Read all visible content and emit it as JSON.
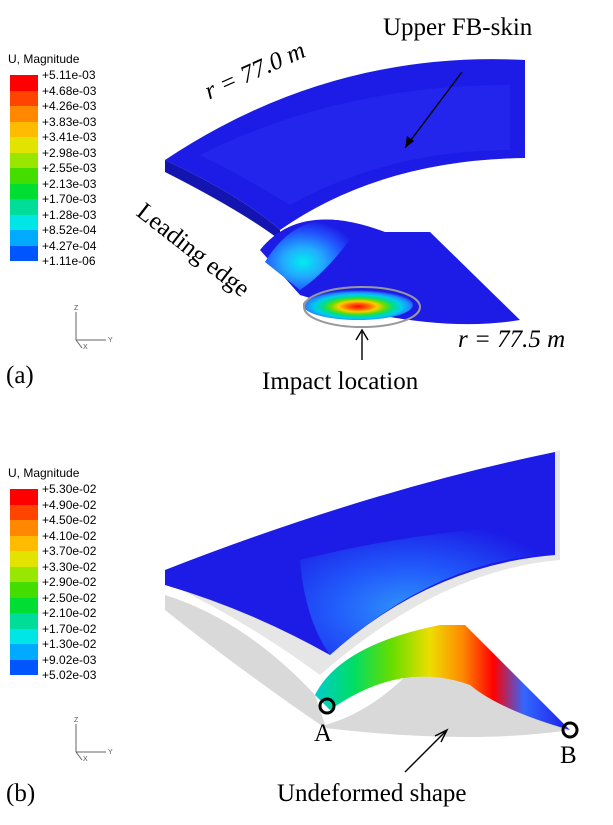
{
  "panel_a": {
    "panel_label": "(a)",
    "legend": {
      "title": "U, Magnitude",
      "values": [
        "+5.11e-03",
        "+4.68e-03",
        "+4.26e-03",
        "+3.83e-03",
        "+3.41e-03",
        "+2.98e-03",
        "+2.55e-03",
        "+2.13e-03",
        "+1.70e-03",
        "+1.28e-03",
        "+8.52e-04",
        "+4.27e-04",
        "+1.11e-06"
      ]
    },
    "triad": {
      "z": "Z",
      "y": "Y",
      "x": "X"
    },
    "annotations": {
      "upper_skin": "Upper FB-skin",
      "radius_top": "r = 77.0 m",
      "leading_edge": "Leading edge",
      "radius_bottom": "r = 77.5 m",
      "impact": "Impact location"
    }
  },
  "panel_b": {
    "panel_label": "(b)",
    "legend": {
      "title": "U, Magnitude",
      "values": [
        "+5.30e-02",
        "+4.90e-02",
        "+4.50e-02",
        "+4.10e-02",
        "+3.70e-02",
        "+3.30e-02",
        "+2.90e-02",
        "+2.50e-02",
        "+2.10e-02",
        "+1.70e-02",
        "+1.30e-02",
        "+9.02e-03",
        "+5.02e-03"
      ]
    },
    "triad": {
      "z": "Z",
      "y": "Y",
      "x": "X"
    },
    "annotations": {
      "point_a": "A",
      "point_b": "B",
      "undeformed": "Undeformed shape"
    }
  },
  "colors": {
    "contour_scale": [
      "#ff0000",
      "#ff4400",
      "#ff8800",
      "#ffbb00",
      "#e3e300",
      "#99e600",
      "#44dd00",
      "#00dd33",
      "#00dd99",
      "#00e6e6",
      "#00aaff",
      "#0055ff",
      "#0000ee"
    ],
    "model_blue": "#1c1ce6",
    "undeformed_gray": "#d9d9d9"
  }
}
